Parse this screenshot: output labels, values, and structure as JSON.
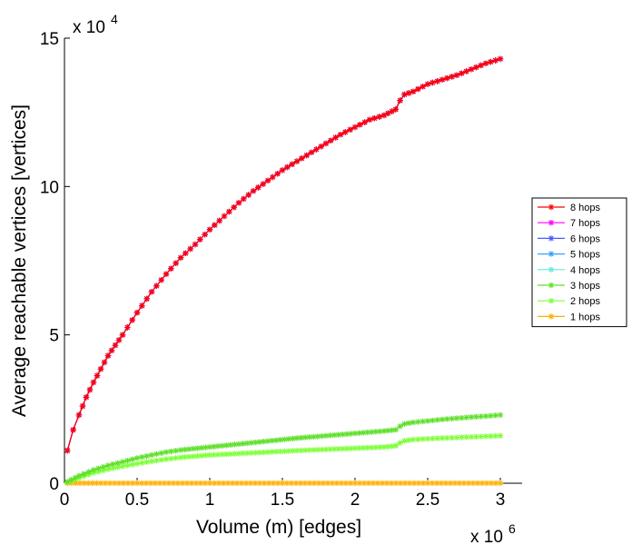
{
  "chart_data": {
    "type": "line",
    "xlabel": "Volume (m) [edges]",
    "ylabel": "Average reachable vertices [vertices]",
    "x_multiplier": "x 10",
    "x_multiplier_exp": "6",
    "y_multiplier": "x 10",
    "y_multiplier_exp": "4",
    "xlim": [
      0,
      3.15
    ],
    "ylim": [
      0,
      15
    ],
    "xticks": [
      0,
      0.5,
      1,
      1.5,
      2,
      2.5,
      3
    ],
    "xtick_labels": [
      "0",
      "0.5",
      "1",
      "1.5",
      "2",
      "2.5",
      "3"
    ],
    "yticks": [
      0,
      5,
      10,
      15
    ],
    "ytick_labels": [
      "0",
      "5",
      "10",
      "15"
    ],
    "grid": false,
    "legend_position": "right",
    "series": [
      {
        "name": "8 hops",
        "color": "#ff0000",
        "x": [
          0.02,
          0.06,
          0.1,
          0.15,
          0.2,
          0.25,
          0.3,
          0.35,
          0.4,
          0.5,
          0.6,
          0.7,
          0.8,
          0.9,
          1.0,
          1.1,
          1.2,
          1.3,
          1.4,
          1.5,
          1.6,
          1.7,
          1.8,
          1.9,
          2.0,
          2.1,
          2.2,
          2.28,
          2.31,
          2.34,
          2.4,
          2.5,
          2.6,
          2.7,
          2.8,
          2.9,
          3.0
        ],
        "y": [
          1.1,
          1.8,
          2.3,
          2.9,
          3.4,
          3.85,
          4.3,
          4.65,
          5.0,
          5.75,
          6.45,
          7.05,
          7.6,
          8.05,
          8.55,
          9.0,
          9.45,
          9.85,
          10.2,
          10.55,
          10.85,
          11.15,
          11.45,
          11.75,
          12.0,
          12.25,
          12.4,
          12.6,
          12.9,
          13.1,
          13.2,
          13.45,
          13.6,
          13.75,
          13.95,
          14.15,
          14.3
        ]
      },
      {
        "name": "7 hops",
        "color": "#ff00ff",
        "x": [
          0.02,
          0.06,
          0.1,
          0.15,
          0.2,
          0.25,
          0.3,
          0.35,
          0.4,
          0.5,
          0.6,
          0.7,
          0.8,
          0.9,
          1.0,
          1.1,
          1.2,
          1.3,
          1.4,
          1.5,
          1.6,
          1.7,
          1.8,
          1.9,
          2.0,
          2.1,
          2.2,
          2.28,
          2.31,
          2.34,
          2.4,
          2.5,
          2.6,
          2.7,
          2.8,
          2.9,
          3.0
        ],
        "y": [
          1.1,
          1.8,
          2.3,
          2.9,
          3.4,
          3.85,
          4.3,
          4.65,
          5.0,
          5.75,
          6.45,
          7.05,
          7.6,
          8.05,
          8.55,
          9.0,
          9.45,
          9.85,
          10.2,
          10.55,
          10.85,
          11.15,
          11.45,
          11.75,
          12.0,
          12.25,
          12.4,
          12.6,
          12.9,
          13.1,
          13.2,
          13.45,
          13.6,
          13.75,
          13.95,
          14.15,
          14.3
        ]
      },
      {
        "name": "6 hops",
        "color": "#4a5cff",
        "x": [
          0.02,
          0.06,
          0.1,
          0.15,
          0.2,
          0.25,
          0.3,
          0.35,
          0.4,
          0.5,
          0.6,
          0.7,
          0.8,
          0.9,
          1.0,
          1.1,
          1.2,
          1.3,
          1.4,
          1.5,
          1.6,
          1.7,
          1.8,
          1.9,
          2.0,
          2.1,
          2.2,
          2.28,
          2.31,
          2.34,
          2.4,
          2.5,
          2.6,
          2.7,
          2.8,
          2.9,
          3.0
        ],
        "y": [
          1.1,
          1.8,
          2.3,
          2.9,
          3.4,
          3.85,
          4.3,
          4.65,
          5.0,
          5.75,
          6.45,
          7.05,
          7.6,
          8.05,
          8.55,
          9.0,
          9.45,
          9.85,
          10.2,
          10.55,
          10.85,
          11.15,
          11.45,
          11.75,
          12.0,
          12.25,
          12.4,
          12.6,
          12.9,
          13.1,
          13.2,
          13.45,
          13.6,
          13.75,
          13.95,
          14.15,
          14.3
        ]
      },
      {
        "name": "5 hops",
        "color": "#3aa0ff",
        "x": [
          0.02,
          0.06,
          0.1,
          0.15,
          0.2,
          0.25,
          0.3,
          0.35,
          0.4,
          0.5,
          0.6,
          0.7,
          0.8,
          0.9,
          1.0,
          1.1,
          1.2,
          1.3,
          1.4,
          1.5,
          1.6,
          1.7,
          1.8,
          1.9,
          2.0,
          2.1,
          2.2,
          2.28,
          2.31,
          2.34,
          2.4,
          2.5,
          2.6,
          2.7,
          2.8,
          2.9,
          3.0
        ],
        "y": [
          1.1,
          1.8,
          2.3,
          2.9,
          3.4,
          3.85,
          4.3,
          4.65,
          5.0,
          5.75,
          6.45,
          7.05,
          7.6,
          8.05,
          8.55,
          9.0,
          9.45,
          9.85,
          10.2,
          10.55,
          10.85,
          11.15,
          11.45,
          11.75,
          12.0,
          12.25,
          12.4,
          12.6,
          12.9,
          13.1,
          13.2,
          13.45,
          13.6,
          13.75,
          13.95,
          14.15,
          14.3
        ]
      },
      {
        "name": "4 hops",
        "color": "#66e8e0",
        "x": [
          0.02,
          0.06,
          0.1,
          0.15,
          0.2,
          0.25,
          0.3,
          0.35,
          0.4,
          0.5,
          0.6,
          0.7,
          0.8,
          0.9,
          1.0,
          1.1,
          1.2,
          1.3,
          1.4,
          1.5,
          1.6,
          1.7,
          1.8,
          1.9,
          2.0,
          2.1,
          2.2,
          2.28,
          2.31,
          2.34,
          2.4,
          2.5,
          2.6,
          2.7,
          2.8,
          2.9,
          3.0
        ],
        "y": [
          1.1,
          1.8,
          2.3,
          2.9,
          3.4,
          3.85,
          4.3,
          4.65,
          5.0,
          5.75,
          6.45,
          7.05,
          7.6,
          8.05,
          8.55,
          9.0,
          9.45,
          9.85,
          10.2,
          10.55,
          10.85,
          11.15,
          11.45,
          11.75,
          12.0,
          12.25,
          12.4,
          12.6,
          12.9,
          13.1,
          13.2,
          13.45,
          13.6,
          13.75,
          13.95,
          14.15,
          14.3
        ]
      },
      {
        "name": "3 hops",
        "color": "#5ee02a",
        "x": [
          0.02,
          0.1,
          0.2,
          0.3,
          0.4,
          0.5,
          0.6,
          0.7,
          0.8,
          1.0,
          1.2,
          1.4,
          1.6,
          1.8,
          2.0,
          2.2,
          2.28,
          2.31,
          2.34,
          2.4,
          2.5,
          2.6,
          2.7,
          2.8,
          2.9,
          3.0
        ],
        "y": [
          0.05,
          0.25,
          0.45,
          0.6,
          0.72,
          0.85,
          0.95,
          1.05,
          1.12,
          1.22,
          1.32,
          1.42,
          1.52,
          1.6,
          1.68,
          1.76,
          1.8,
          1.92,
          2.0,
          2.05,
          2.1,
          2.15,
          2.19,
          2.23,
          2.26,
          2.3
        ]
      },
      {
        "name": "2 hops",
        "color": "#7fff3a",
        "x": [
          0.02,
          0.1,
          0.2,
          0.3,
          0.4,
          0.5,
          0.6,
          0.7,
          0.8,
          1.0,
          1.2,
          1.4,
          1.6,
          1.8,
          2.0,
          2.2,
          2.28,
          2.31,
          2.34,
          2.4,
          2.5,
          2.6,
          2.7,
          2.8,
          2.9,
          3.0
        ],
        "y": [
          0.03,
          0.18,
          0.35,
          0.47,
          0.57,
          0.66,
          0.74,
          0.81,
          0.87,
          0.95,
          1.0,
          1.05,
          1.1,
          1.14,
          1.18,
          1.22,
          1.26,
          1.36,
          1.43,
          1.47,
          1.5,
          1.52,
          1.54,
          1.56,
          1.58,
          1.6
        ]
      },
      {
        "name": "1 hops",
        "color": "#ffb000",
        "x": [
          0.02,
          0.25,
          0.5,
          0.75,
          1.0,
          1.25,
          1.5,
          1.75,
          2.0,
          2.25,
          2.5,
          2.75,
          3.0
        ],
        "y": [
          0.003,
          0.004,
          0.004,
          0.004,
          0.004,
          0.004,
          0.004,
          0.004,
          0.004,
          0.004,
          0.004,
          0.004,
          0.004
        ]
      }
    ]
  }
}
